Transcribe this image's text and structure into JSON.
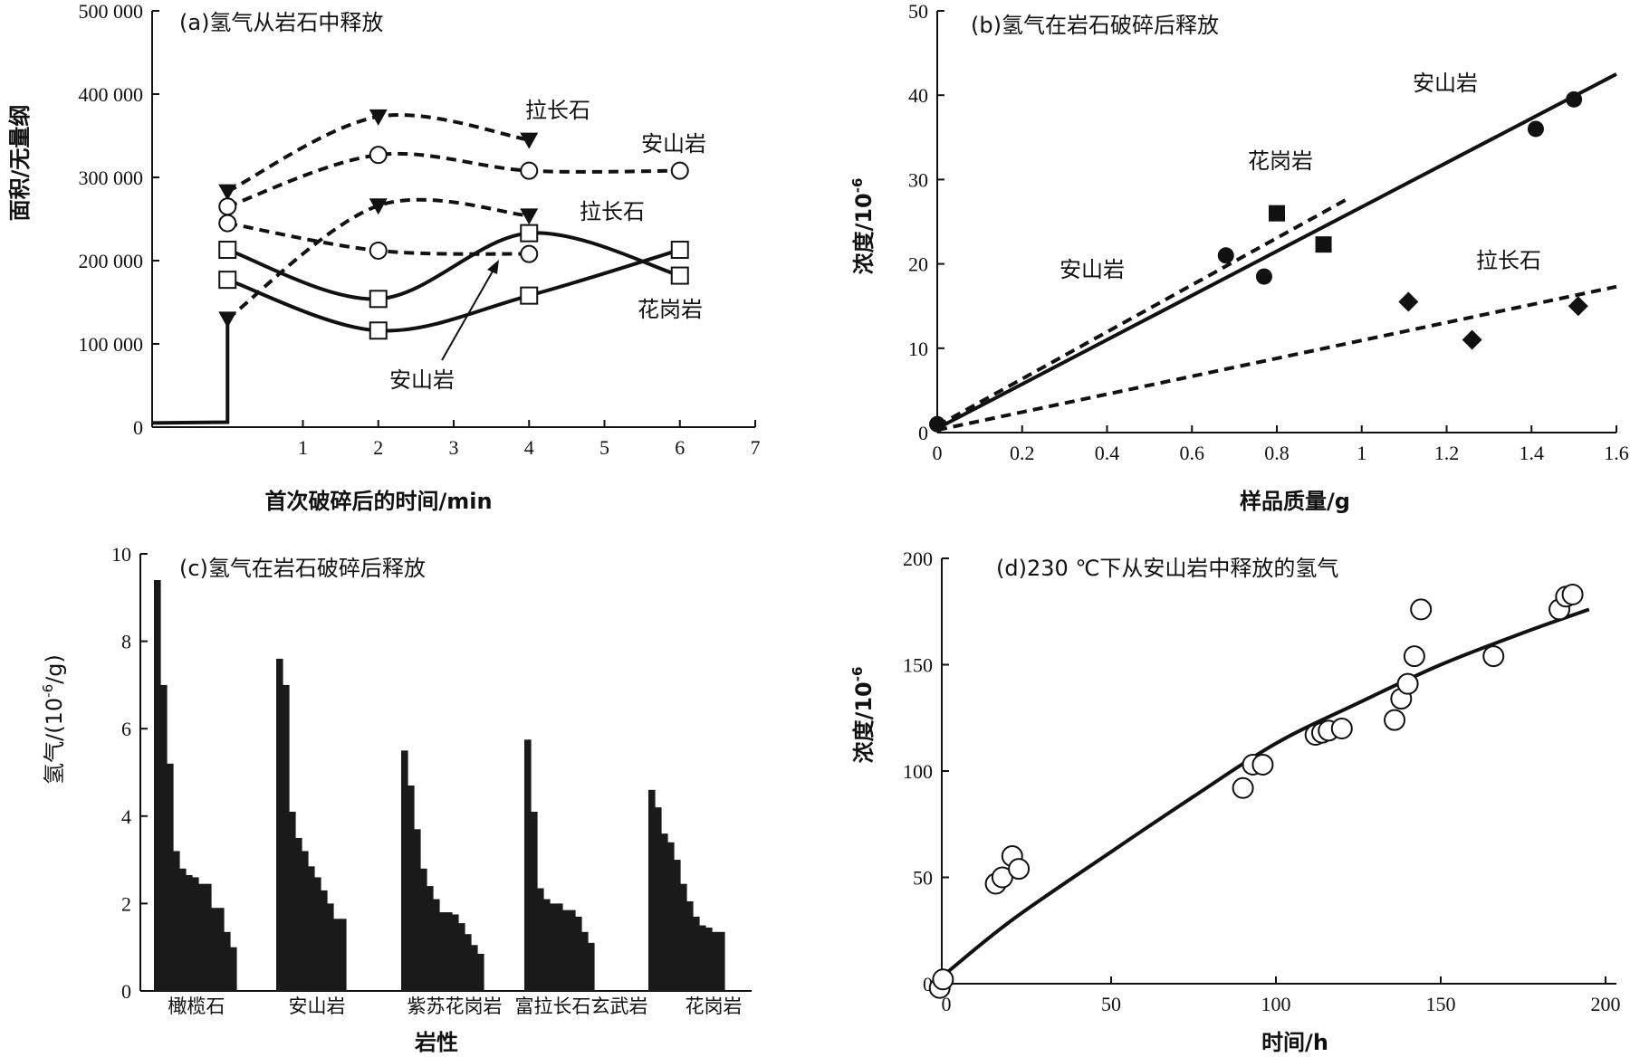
{
  "chart_data": [
    {
      "id": "a",
      "type": "line",
      "title": "(a)氢气从岩石中释放",
      "xlabel": "首次破碎后的时间/min",
      "ylabel": "面积/无量纲",
      "xlim": [
        -1,
        7
      ],
      "ylim": [
        0,
        500000
      ],
      "xticks": [
        0,
        1,
        2,
        3,
        4,
        5,
        6,
        7
      ],
      "yticks": [
        0,
        100000,
        200000,
        300000,
        400000,
        500000
      ],
      "ytick_labels": [
        "0",
        "100 000",
        "200 000",
        "300 000",
        "400 000",
        "500 000"
      ],
      "baseline": {
        "x": [
          -1,
          0,
          0
        ],
        "y": [
          5000,
          6000,
          130000
        ]
      },
      "series": [
        {
          "style": "dashed",
          "marker": "triangle-down",
          "points": [
            [
              0,
              283000
            ],
            [
              2,
              373000
            ],
            [
              4,
              345000
            ]
          ]
        },
        {
          "style": "dashed",
          "marker": "circle",
          "points": [
            [
              0,
              265000
            ],
            [
              2,
              327000
            ],
            [
              4,
              308000
            ],
            [
              6,
              308000
            ]
          ]
        },
        {
          "style": "dashed",
          "marker": "triangle-down",
          "points": [
            [
              0,
              130000
            ],
            [
              2,
              266000
            ],
            [
              4,
              254000
            ]
          ]
        },
        {
          "style": "dashed",
          "marker": "circle",
          "points": [
            [
              0,
              245000
            ],
            [
              2,
              212000
            ],
            [
              4,
              208000
            ]
          ]
        },
        {
          "style": "solid",
          "marker": "square",
          "points": [
            [
              0,
              213000
            ],
            [
              2,
              154000
            ],
            [
              4,
              233000
            ],
            [
              6,
              182000
            ]
          ]
        },
        {
          "style": "solid",
          "marker": "square",
          "points": [
            [
              0,
              177000
            ],
            [
              2,
              116000
            ],
            [
              4,
              158000
            ],
            [
              6,
              213000
            ]
          ]
        }
      ],
      "annotations": [
        "拉长石",
        "安山岩",
        "拉长石",
        "花岗岩",
        "安山岩"
      ]
    },
    {
      "id": "b",
      "type": "scatter",
      "title": "(b)氢气在岩石破碎后释放",
      "xlabel": "样品质量/g",
      "ylabel": "浓度/10",
      "ylabel_sup": "-6",
      "xlim": [
        0,
        1.6
      ],
      "ylim": [
        0,
        50
      ],
      "xticks": [
        0,
        0.2,
        0.4,
        0.6,
        0.8,
        1,
        1.2,
        1.4,
        1.6
      ],
      "xtick_labels": [
        "0",
        "0.2",
        "0.4",
        "0.6",
        "0.8",
        "1",
        "1.2",
        "1.4",
        "1.6"
      ],
      "yticks": [
        0,
        10,
        20,
        30,
        40,
        50
      ],
      "series": [
        {
          "marker": "circle",
          "points": [
            [
              0,
              1
            ],
            [
              0.68,
              21
            ],
            [
              0.77,
              18.5
            ],
            [
              1.41,
              36
            ],
            [
              1.5,
              39.5
            ]
          ]
        },
        {
          "marker": "square",
          "points": [
            [
              0.8,
              26
            ],
            [
              0.91,
              22.3
            ]
          ]
        },
        {
          "marker": "diamond",
          "points": [
            [
              1.11,
              15.5
            ],
            [
              1.26,
              11
            ],
            [
              1.51,
              15
            ]
          ]
        }
      ],
      "fit_lines": [
        {
          "style": "solid",
          "from": [
            0,
            0.5
          ],
          "to": [
            1.6,
            42.5
          ]
        },
        {
          "style": "dashed",
          "from": [
            0,
            0.8
          ],
          "to": [
            0.97,
            27.8
          ]
        },
        {
          "style": "dashed",
          "from": [
            0,
            0.3
          ],
          "to": [
            1.6,
            17.3
          ]
        }
      ],
      "annotations": [
        "安山岩",
        "花岗岩",
        "安山岩",
        "拉长石"
      ]
    },
    {
      "id": "c",
      "type": "bar",
      "title": "(c)氢气在岩石破碎后释放",
      "xlabel": "岩性",
      "ylabel": "氢气/(10",
      "ylabel_sup": "-6",
      "ylabel_tail": "/g)",
      "ylim": [
        0,
        10
      ],
      "yticks": [
        0,
        2,
        4,
        6,
        8,
        10
      ],
      "categories": [
        "橄榄石",
        "安山岩",
        "紫苏花岗岩",
        "富拉长石玄武岩",
        "花岗岩"
      ],
      "groups": [
        [
          9.4,
          7.0,
          5.2,
          3.2,
          2.8,
          2.65,
          2.6,
          2.45,
          2.45,
          1.9,
          1.9,
          1.35,
          1.0
        ],
        [
          7.6,
          7.0,
          4.1,
          3.5,
          3.2,
          2.85,
          2.6,
          2.3,
          2.0,
          1.65,
          1.65
        ],
        [
          5.5,
          4.7,
          3.7,
          2.8,
          2.4,
          2.1,
          1.8,
          1.8,
          1.75,
          1.55,
          1.3,
          1.05,
          0.85
        ],
        [
          5.75,
          4.1,
          2.35,
          2.1,
          2.0,
          2.0,
          1.85,
          1.85,
          1.7,
          1.35,
          1.1
        ],
        [
          4.6,
          4.2,
          3.6,
          3.4,
          3.0,
          2.45,
          2.05,
          1.7,
          1.5,
          1.45,
          1.35,
          1.35
        ]
      ]
    },
    {
      "id": "d",
      "type": "scatter",
      "title": "(d)230 ℃下从安山岩中释放的氢气",
      "xlabel": "时间/h",
      "ylabel": "浓度/10",
      "ylabel_sup": "-6",
      "xlim": [
        0,
        200
      ],
      "ylim": [
        0,
        200
      ],
      "xticks": [
        0,
        50,
        100,
        150,
        200
      ],
      "yticks": [
        0,
        50,
        100,
        150,
        200
      ],
      "points": [
        [
          -2,
          -2
        ],
        [
          -1,
          2
        ],
        [
          15,
          47
        ],
        [
          17,
          50
        ],
        [
          20,
          60
        ],
        [
          22,
          54
        ],
        [
          90,
          92
        ],
        [
          93,
          103
        ],
        [
          96,
          103
        ],
        [
          112,
          117
        ],
        [
          114,
          118
        ],
        [
          116,
          119
        ],
        [
          120,
          120
        ],
        [
          136,
          124
        ],
        [
          138,
          134
        ],
        [
          140,
          141
        ],
        [
          142,
          154
        ],
        [
          144,
          176
        ],
        [
          166,
          154
        ],
        [
          186,
          176
        ],
        [
          188,
          182
        ],
        [
          190,
          183
        ]
      ],
      "fit_curve": [
        [
          0,
          5
        ],
        [
          20,
          30
        ],
        [
          50,
          62
        ],
        [
          75,
          88
        ],
        [
          100,
          113
        ],
        [
          125,
          132
        ],
        [
          150,
          150
        ],
        [
          175,
          165
        ],
        [
          195,
          176
        ]
      ]
    }
  ]
}
